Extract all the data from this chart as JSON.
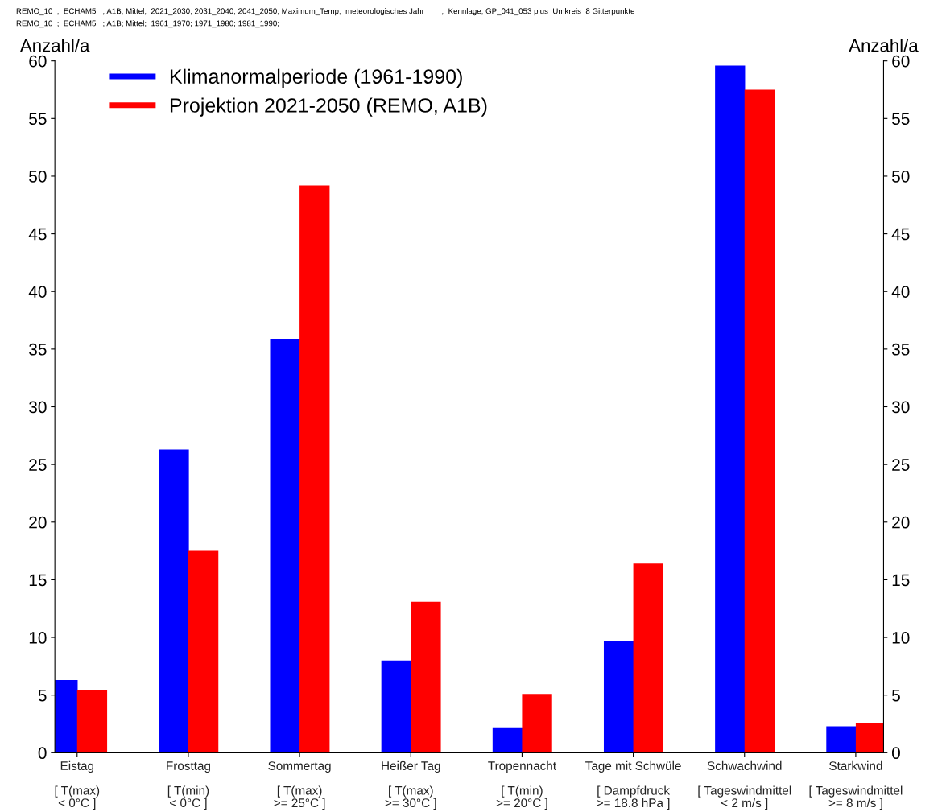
{
  "chart_data": {
    "type": "bar",
    "categories": [
      "Eistag\n\n[ T(max)\n< 0°C ]",
      "Frosttag\n\n[ T(min)\n< 0°C ]",
      "Sommertag\n\n[ T(max)\n>= 25°C ]",
      "Heißer Tag\n\n[ T(max)\n>= 30°C ]",
      "Tropennacht\n\n[ T(min)\n>= 20°C ]",
      "Tage mit Schwüle\n\n[ Dampfdruck\n>= 18.8 hPa ]",
      "Schwachwind\n\n[ Tageswindmittel\n< 2 m/s ]",
      "Starkwind\n\n[ Tageswindmittel\n>= 8 m/s ]"
    ],
    "series": [
      {
        "name": "Klimanormalperiode (1961-1990)",
        "color": "#0000ff",
        "values": [
          6.3,
          26.3,
          35.9,
          8.0,
          2.2,
          9.7,
          59.6,
          2.3
        ]
      },
      {
        "name": "Projektion 2021-2050 (REMO, A1B)",
        "color": "#ff0000",
        "values": [
          5.4,
          17.5,
          49.2,
          13.1,
          5.1,
          16.4,
          57.5,
          2.6
        ]
      }
    ],
    "ylabel": "Anzahl/a",
    "y2label": "Anzahl/a",
    "ylim": [
      0,
      60
    ],
    "yticks": [
      0,
      5,
      10,
      15,
      20,
      25,
      30,
      35,
      40,
      45,
      50,
      55,
      60
    ],
    "y2lim": [
      0,
      60
    ],
    "y2ticks": [
      0,
      5,
      10,
      15,
      20,
      25,
      30,
      35,
      40,
      45,
      50,
      55,
      60
    ],
    "annotations": [
      "REMO_10  ;  ECHAM5   ; A1B; Mittel;  2021_2030; 2031_2040; 2041_2050; Maximum_Temp;  meteorologisches Jahr        ;  Kennlage; GP_041_053 plus  Umkreis  8 Gitterpunkte",
      "REMO_10  ;  ECHAM5   ; A1B; Mittel;  1961_1970; 1971_1980; 1981_1990;"
    ],
    "legend": "top left",
    "grid": false
  }
}
